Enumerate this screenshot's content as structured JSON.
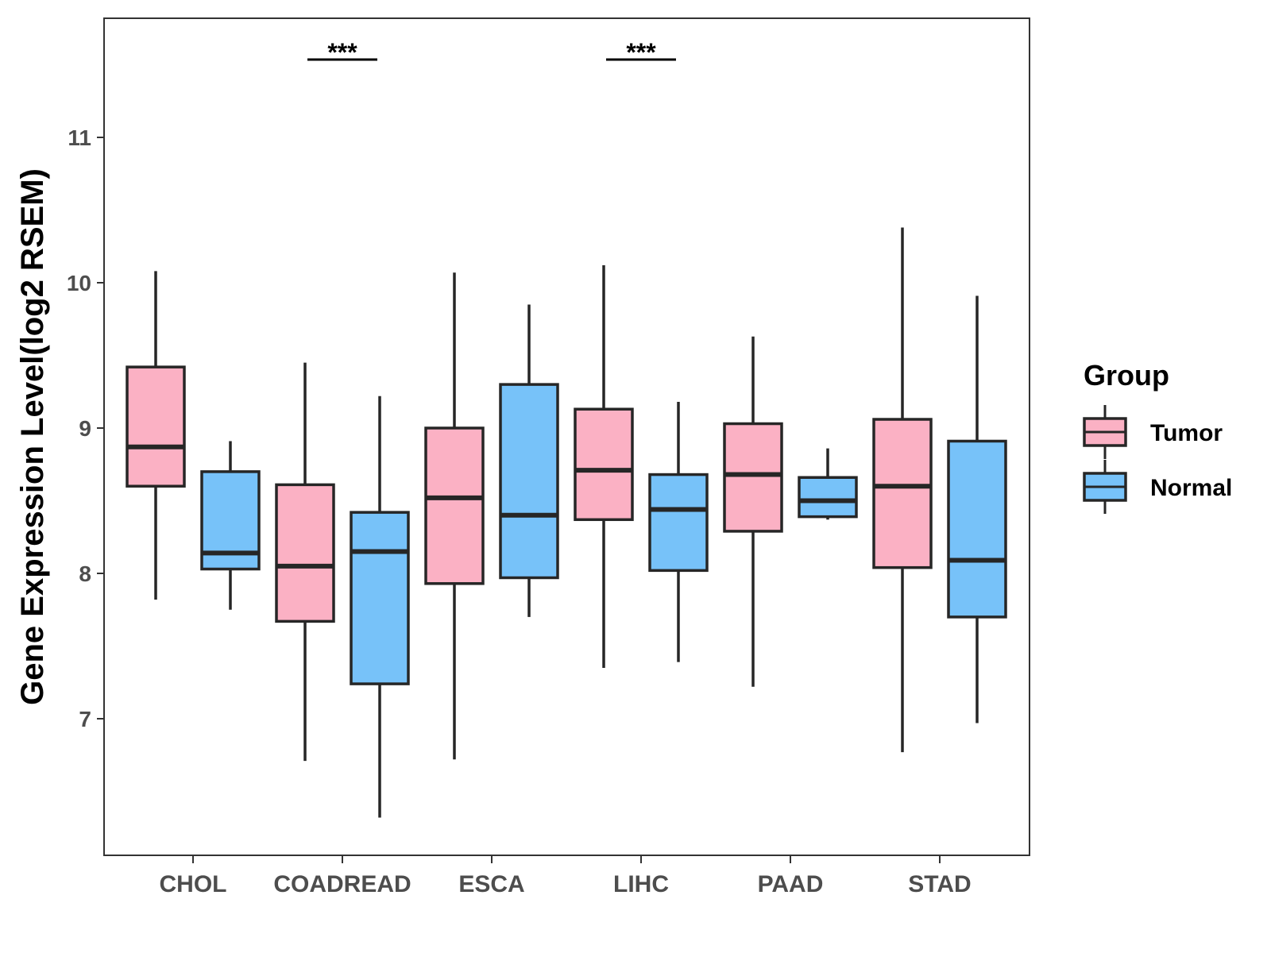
{
  "chart_data": {
    "type": "box",
    "ylabel": "Gene Expression Level(log2 RSEM)",
    "xlabel": "",
    "ylim": [
      6.1,
      11.85
    ],
    "yticks": [
      7,
      8,
      9,
      10,
      11
    ],
    "categories": [
      "CHOL",
      "COADREAD",
      "ESCA",
      "LIHC",
      "PAAD",
      "STAD"
    ],
    "legend": {
      "title": "Group",
      "position": "right",
      "entries": [
        {
          "name": "Tumor",
          "color": "#FBB1C4"
        },
        {
          "name": "Normal",
          "color": "#77C2F9"
        }
      ]
    },
    "series": [
      {
        "name": "Tumor",
        "color": "#FBB1C4",
        "boxes": [
          {
            "category": "CHOL",
            "whisker_low": 7.82,
            "q1": 8.6,
            "median": 8.87,
            "q3": 9.42,
            "whisker_high": 10.08
          },
          {
            "category": "COADREAD",
            "whisker_low": 6.71,
            "q1": 7.67,
            "median": 8.05,
            "q3": 8.61,
            "whisker_high": 9.45
          },
          {
            "category": "ESCA",
            "whisker_low": 6.72,
            "q1": 7.93,
            "median": 8.52,
            "q3": 9.0,
            "whisker_high": 10.07
          },
          {
            "category": "LIHC",
            "whisker_low": 7.35,
            "q1": 8.37,
            "median": 8.71,
            "q3": 9.13,
            "whisker_high": 10.12
          },
          {
            "category": "PAAD",
            "whisker_low": 7.22,
            "q1": 8.29,
            "median": 8.68,
            "q3": 9.03,
            "whisker_high": 9.63
          },
          {
            "category": "STAD",
            "whisker_low": 6.77,
            "q1": 8.04,
            "median": 8.6,
            "q3": 9.06,
            "whisker_high": 10.38
          }
        ]
      },
      {
        "name": "Normal",
        "color": "#77C2F9",
        "boxes": [
          {
            "category": "CHOL",
            "whisker_low": 7.75,
            "q1": 8.03,
            "median": 8.14,
            "q3": 8.7,
            "whisker_high": 8.91
          },
          {
            "category": "COADREAD",
            "whisker_low": 6.32,
            "q1": 7.24,
            "median": 8.15,
            "q3": 8.42,
            "whisker_high": 9.22
          },
          {
            "category": "ESCA",
            "whisker_low": 7.7,
            "q1": 7.97,
            "median": 8.4,
            "q3": 9.3,
            "whisker_high": 9.85
          },
          {
            "category": "LIHC",
            "whisker_low": 7.39,
            "q1": 8.02,
            "median": 8.44,
            "q3": 8.68,
            "whisker_high": 9.18
          },
          {
            "category": "PAAD",
            "whisker_low": 8.37,
            "q1": 8.39,
            "median": 8.5,
            "q3": 8.66,
            "whisker_high": 8.86
          },
          {
            "category": "STAD",
            "whisker_low": 6.97,
            "q1": 7.7,
            "median": 8.09,
            "q3": 8.91,
            "whisker_high": 9.91
          }
        ]
      }
    ],
    "annotations": [
      {
        "category": "COADREAD",
        "label": "***"
      },
      {
        "category": "LIHC",
        "label": "***"
      }
    ]
  }
}
